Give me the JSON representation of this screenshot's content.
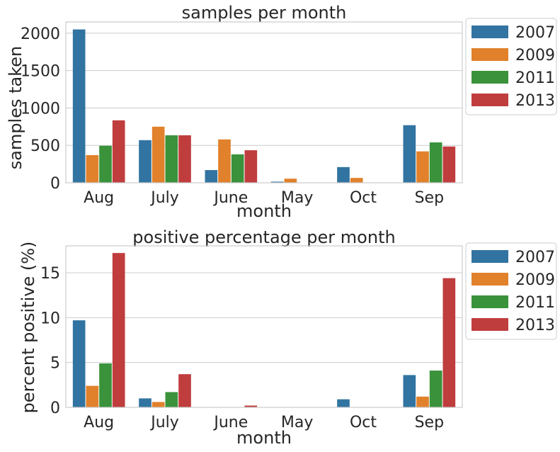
{
  "colors": {
    "2007": "#3274a1",
    "2009": "#e1812c",
    "2011": "#3a923a",
    "2013": "#c03d3e",
    "grid": "#cccccc",
    "frame": "#cccccc",
    "text": "#262626"
  },
  "chart_data": [
    {
      "type": "bar",
      "title": "samples per month",
      "xlabel": "month",
      "ylabel": "samples taken",
      "ylim": [
        0,
        2150
      ],
      "yticks": [
        0,
        500,
        1000,
        1500,
        2000
      ],
      "ytick_labels": [
        "0",
        "500",
        "1000",
        "1500",
        "2000"
      ],
      "grid": true,
      "legend_position": "outside-right",
      "categories": [
        "Aug",
        "July",
        "June",
        "May",
        "Oct",
        "Sep"
      ],
      "series": [
        {
          "name": "2007",
          "values": [
            2050,
            570,
            170,
            15,
            210,
            770
          ]
        },
        {
          "name": "2009",
          "values": [
            370,
            750,
            580,
            55,
            65,
            420
          ]
        },
        {
          "name": "2011",
          "values": [
            495,
            635,
            380,
            0,
            0,
            540
          ]
        },
        {
          "name": "2013",
          "values": [
            835,
            635,
            435,
            0,
            0,
            485
          ]
        }
      ]
    },
    {
      "type": "bar",
      "title": "positive percentage per month",
      "xlabel": "month",
      "ylabel": "percent positive (%)",
      "ylim": [
        0,
        18
      ],
      "yticks": [
        0,
        5,
        10,
        15
      ],
      "ytick_labels": [
        "0",
        "5",
        "10",
        "15"
      ],
      "grid": true,
      "legend_position": "outside-right",
      "categories": [
        "Aug",
        "July",
        "June",
        "May",
        "Oct",
        "Sep"
      ],
      "series": [
        {
          "name": "2007",
          "values": [
            9.7,
            1.0,
            0.0,
            0.0,
            0.9,
            3.6
          ]
        },
        {
          "name": "2009",
          "values": [
            2.4,
            0.6,
            0.0,
            0.0,
            0.0,
            1.2
          ]
        },
        {
          "name": "2011",
          "values": [
            4.9,
            1.7,
            0.0,
            0.0,
            0.0,
            4.1
          ]
        },
        {
          "name": "2013",
          "values": [
            17.2,
            3.7,
            0.2,
            0.0,
            0.0,
            14.4
          ]
        }
      ]
    }
  ]
}
